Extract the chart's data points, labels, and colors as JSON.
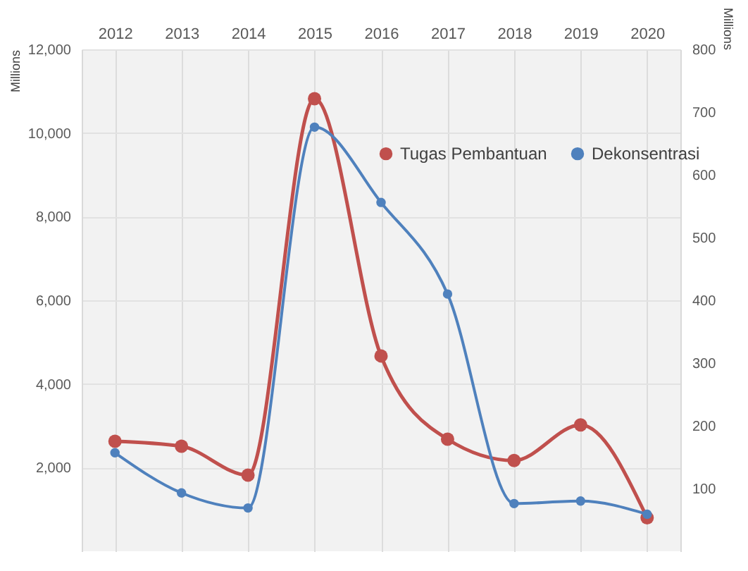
{
  "chart_data": {
    "type": "line",
    "categories": [
      "2012",
      "2013",
      "2014",
      "2015",
      "2016",
      "2017",
      "2018",
      "2019",
      "2020"
    ],
    "ylabel": "Millions",
    "y2label": "Millions",
    "ylim": [
      0,
      12000
    ],
    "yticks": [
      {
        "value": 2000,
        "label": "2,000"
      },
      {
        "value": 4000,
        "label": "4,000"
      },
      {
        "value": 6000,
        "label": "6,000"
      },
      {
        "value": 8000,
        "label": "8,000"
      },
      {
        "value": 10000,
        "label": "10,000"
      },
      {
        "value": 12000,
        "label": "12,000"
      }
    ],
    "y2lim": [
      0,
      800
    ],
    "y2ticks": [
      100,
      200,
      300,
      400,
      500,
      600,
      700,
      800
    ],
    "series": [
      {
        "name": "Tugas Pembantuan",
        "color": "#c0504d",
        "values": [
          2630,
          2510,
          1820,
          10820,
          4670,
          2680,
          2170,
          3020,
          800
        ]
      },
      {
        "name": "Dekonsentrasi",
        "color": "#4f81bd",
        "axis": "y2",
        "values": [
          157,
          93,
          69,
          676,
          556,
          410,
          76,
          80,
          59
        ]
      }
    ],
    "grid": true,
    "legend": "top right",
    "marker": "circle",
    "line_style": "solid"
  }
}
